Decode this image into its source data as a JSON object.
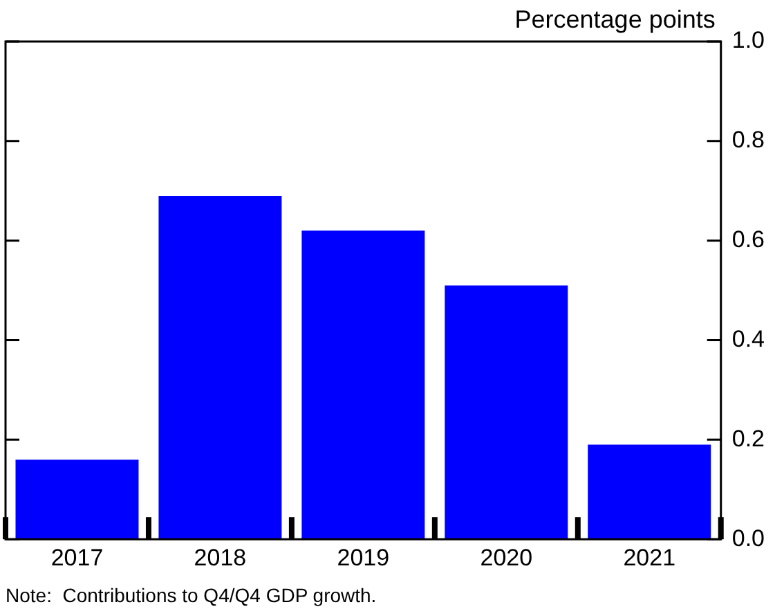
{
  "chart_data": {
    "type": "bar",
    "ylabel": "Percentage points",
    "annotations": [
      "Note:  Contributions to Q4/Q4 GDP growth."
    ],
    "categories": [
      "2017",
      "2018",
      "2019",
      "2020",
      "2021"
    ],
    "values": [
      0.16,
      0.69,
      0.62,
      0.51,
      0.19
    ],
    "color": "#0000ff",
    "ylim": [
      0,
      1
    ],
    "yticks": [
      {
        "value": 0,
        "label": "0.0"
      },
      {
        "value": 0.2,
        "label": "0.2"
      },
      {
        "value": 0.4,
        "label": "0.4"
      },
      {
        "value": 0.6,
        "label": "0.6"
      },
      {
        "value": 0.8,
        "label": "0.8"
      },
      {
        "value": 1,
        "label": "1.0"
      }
    ],
    "grid": false,
    "legend": false
  }
}
